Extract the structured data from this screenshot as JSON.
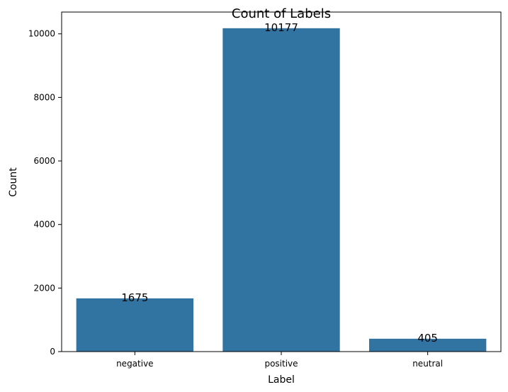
{
  "chart_data": {
    "type": "bar",
    "title": "Count of Labels",
    "xlabel": "Label",
    "ylabel": "Count",
    "categories": [
      "negative",
      "positive",
      "neutral"
    ],
    "values": [
      1675,
      10177,
      405
    ],
    "data_labels": [
      "1675",
      "10177",
      "405"
    ],
    "yticks": [
      0,
      2000,
      4000,
      6000,
      8000,
      10000
    ],
    "ylim": [
      0,
      10686
    ],
    "bar_color": "#3274a1",
    "grid": false,
    "legend": false
  }
}
